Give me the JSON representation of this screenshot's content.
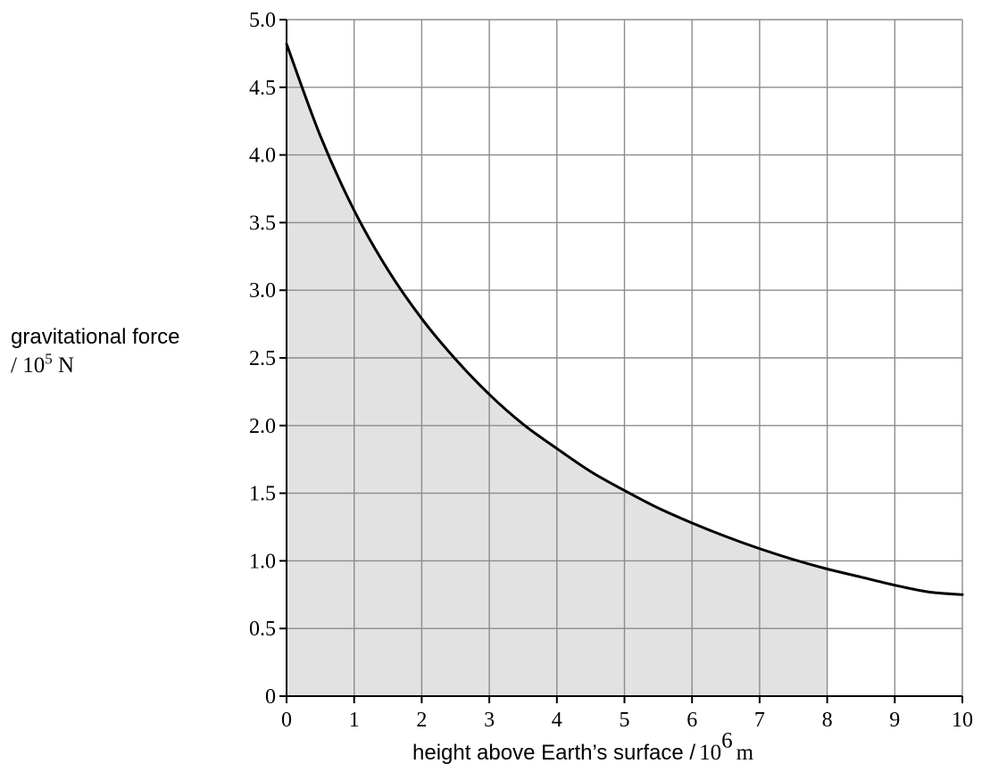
{
  "chart_data": {
    "type": "area",
    "title": "",
    "xlabel": {
      "text": "height above Earth’s surface /",
      "unit_base": "10",
      "unit_exp": "6",
      "unit": "m"
    },
    "ylabel": {
      "line1": "gravitational force",
      "unit_prefix": "/",
      "unit_base": "10",
      "unit_exp": "5",
      "unit": "N"
    },
    "xlim": [
      0,
      10
    ],
    "ylim": [
      0,
      5
    ],
    "x_ticks": [
      "0",
      "1",
      "2",
      "3",
      "4",
      "5",
      "6",
      "7",
      "8",
      "9",
      "10"
    ],
    "y_ticks": [
      "0",
      "0.5",
      "1.0",
      "1.5",
      "2.0",
      "2.5",
      "3.0",
      "3.5",
      "4.0",
      "4.5",
      "5.0"
    ],
    "grid": true,
    "shaded_region": {
      "x_from": 0,
      "x_to": 8,
      "fill": "#e2e2e2"
    },
    "series": [
      {
        "x": [
          0,
          0.5,
          1,
          1.5,
          2,
          2.5,
          3,
          3.5,
          4,
          4.5,
          5,
          5.5,
          6,
          6.5,
          7,
          7.5,
          8,
          8.5,
          9,
          9.5,
          10
        ],
        "values": [
          4.82,
          4.14,
          3.59,
          3.15,
          2.79,
          2.49,
          2.23,
          2.01,
          1.83,
          1.66,
          1.52,
          1.39,
          1.28,
          1.18,
          1.09,
          1.01,
          0.94,
          0.88,
          0.82,
          0.77,
          0.75
        ],
        "color": "#000000"
      }
    ]
  }
}
